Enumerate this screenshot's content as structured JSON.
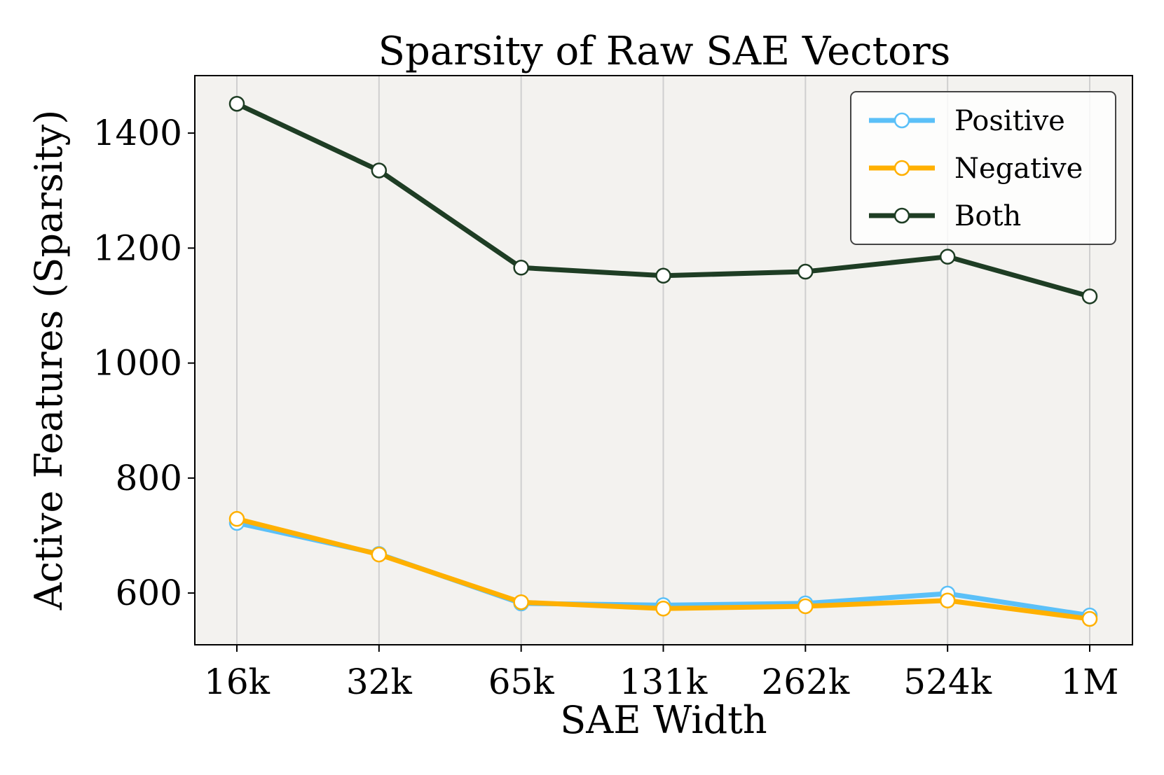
{
  "chart_data": {
    "type": "line",
    "title": "Sparsity of Raw SAE Vectors",
    "xlabel": "SAE Width",
    "ylabel": "Active Features (Sparsity)",
    "categories": [
      "16k",
      "32k",
      "65k",
      "131k",
      "262k",
      "524k",
      "1M"
    ],
    "ylim": [
      510,
      1500
    ],
    "yticks": [
      600,
      800,
      1000,
      1200,
      1400
    ],
    "grid": "x-only",
    "legend_position": "top-right",
    "series": [
      {
        "name": "Positive",
        "color": "#5bc0f8",
        "values": [
          722,
          668,
          582,
          579,
          582,
          599,
          561
        ]
      },
      {
        "name": "Negative",
        "color": "#ffb000",
        "values": [
          729,
          667,
          584,
          573,
          577,
          587,
          555
        ]
      },
      {
        "name": "Both",
        "color": "#1e3d24",
        "values": [
          1451,
          1335,
          1166,
          1152,
          1159,
          1185,
          1116
        ]
      }
    ]
  }
}
